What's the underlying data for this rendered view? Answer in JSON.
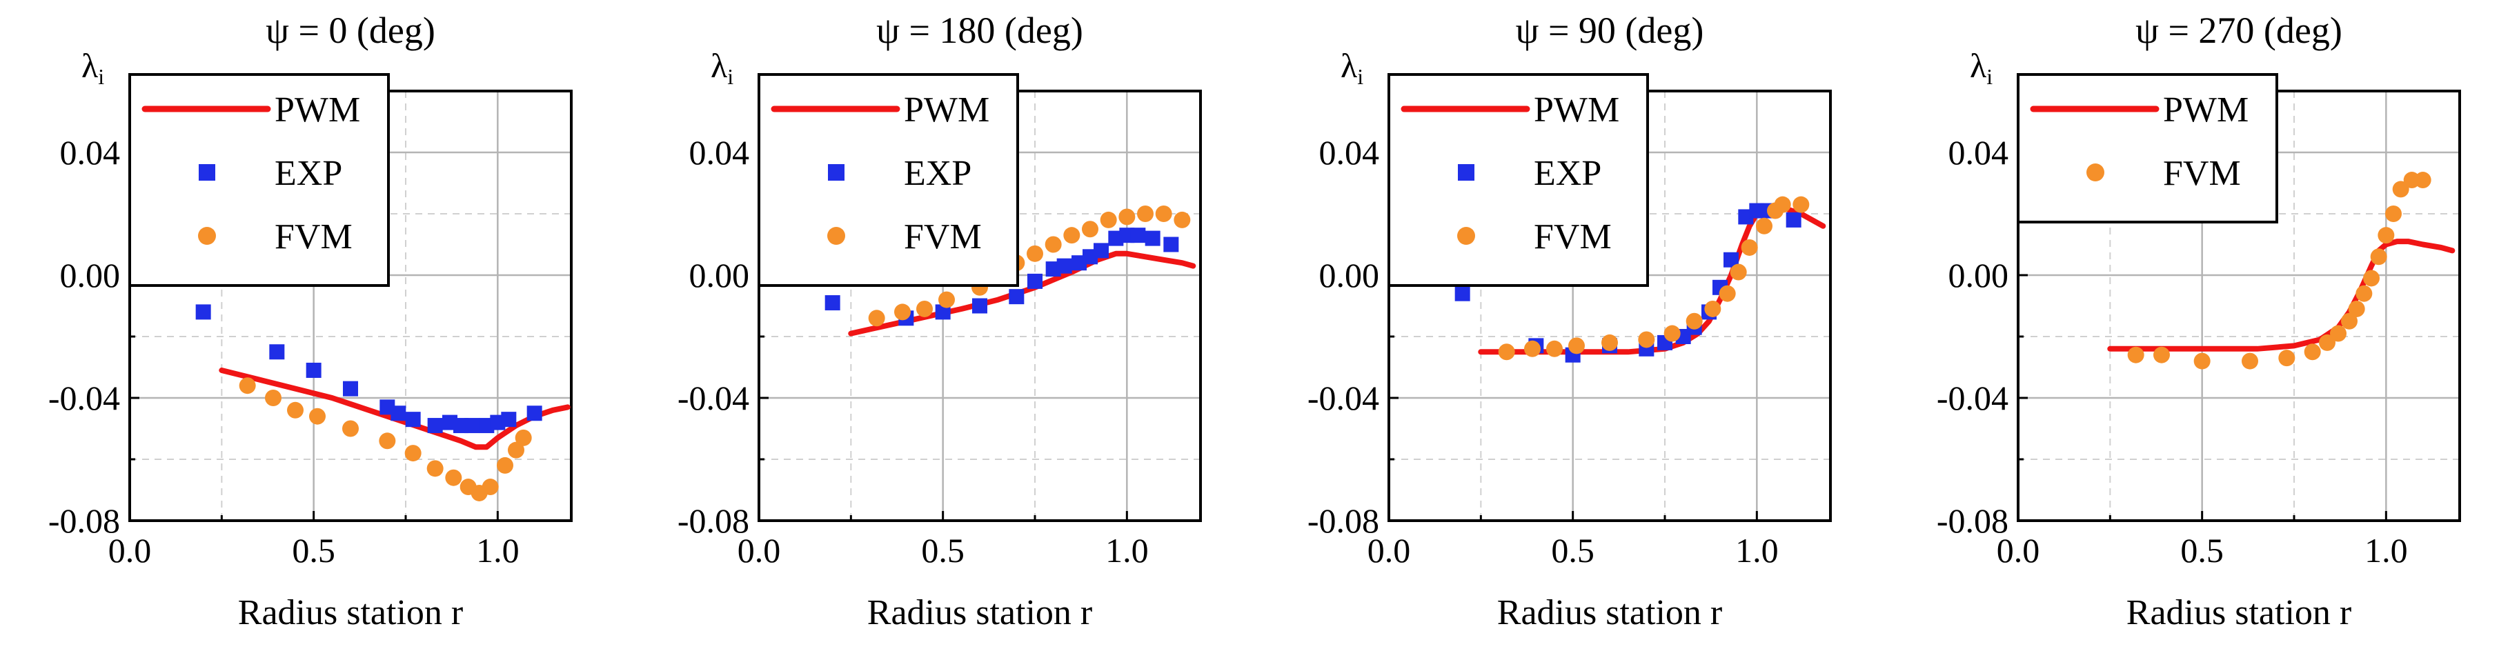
{
  "colors": {
    "pwm": "#f01515",
    "exp": "#1f2ee6",
    "fvm": "#f5902a",
    "grid": "#b4b4b4",
    "grid_minor": "#d0d0d0",
    "axis": "#000000"
  },
  "chart_data": [
    {
      "type": "line+scatter",
      "title": "ψ = 0 (deg)",
      "xlabel": "Radius station r",
      "ylabel": "λ",
      "ylabel_sub": "i",
      "xlim": [
        0.0,
        1.2
      ],
      "ylim": [
        -0.08,
        0.06
      ],
      "xticks": [
        {
          "v": 0.0,
          "label": "0.0"
        },
        {
          "v": 0.5,
          "label": "0.5"
        },
        {
          "v": 1.0,
          "label": "1.0"
        }
      ],
      "yticks": [
        {
          "v": -0.08,
          "label": "-0.08"
        },
        {
          "v": -0.04,
          "label": "-0.04"
        },
        {
          "v": 0.0,
          "label": "0.00"
        },
        {
          "v": 0.04,
          "label": "0.04"
        }
      ],
      "legend": [
        "PWM",
        "EXP",
        "FVM"
      ],
      "series": [
        {
          "name": "PWM",
          "kind": "line",
          "x": [
            0.25,
            0.35,
            0.45,
            0.55,
            0.65,
            0.75,
            0.85,
            0.9,
            0.94,
            0.97,
            1.0,
            1.05,
            1.1,
            1.15,
            1.19
          ],
          "y": [
            -0.031,
            -0.034,
            -0.037,
            -0.04,
            -0.044,
            -0.048,
            -0.052,
            -0.054,
            -0.056,
            -0.056,
            -0.053,
            -0.049,
            -0.046,
            -0.044,
            -0.043
          ]
        },
        {
          "name": "EXP",
          "kind": "square",
          "x": [
            0.2,
            0.4,
            0.5,
            0.6,
            0.7,
            0.73,
            0.77,
            0.83,
            0.87,
            0.9,
            0.93,
            0.97,
            1.0,
            1.03,
            1.1
          ],
          "y": [
            -0.012,
            -0.025,
            -0.031,
            -0.037,
            -0.043,
            -0.045,
            -0.047,
            -0.049,
            -0.048,
            -0.049,
            -0.049,
            -0.049,
            -0.048,
            -0.047,
            -0.045
          ]
        },
        {
          "name": "FVM",
          "kind": "circle",
          "x": [
            0.32,
            0.39,
            0.45,
            0.51,
            0.6,
            0.7,
            0.77,
            0.83,
            0.88,
            0.92,
            0.95,
            0.98,
            1.02,
            1.05,
            1.07
          ],
          "y": [
            -0.036,
            -0.04,
            -0.044,
            -0.046,
            -0.05,
            -0.054,
            -0.058,
            -0.063,
            -0.066,
            -0.069,
            -0.071,
            -0.069,
            -0.062,
            -0.057,
            -0.053
          ]
        }
      ]
    },
    {
      "type": "line+scatter",
      "title": "ψ = 180 (deg)",
      "xlabel": "Radius station r",
      "ylabel": "λ",
      "ylabel_sub": "i",
      "xlim": [
        0.0,
        1.2
      ],
      "ylim": [
        -0.08,
        0.06
      ],
      "xticks": [
        {
          "v": 0.0,
          "label": "0.0"
        },
        {
          "v": 0.5,
          "label": "0.5"
        },
        {
          "v": 1.0,
          "label": "1.0"
        }
      ],
      "yticks": [
        {
          "v": -0.08,
          "label": "-0.08"
        },
        {
          "v": -0.04,
          "label": "-0.04"
        },
        {
          "v": 0.0,
          "label": "0.00"
        },
        {
          "v": 0.04,
          "label": "0.04"
        }
      ],
      "legend": [
        "PWM",
        "EXP",
        "FVM"
      ],
      "series": [
        {
          "name": "PWM",
          "kind": "line",
          "x": [
            0.25,
            0.4,
            0.55,
            0.65,
            0.75,
            0.85,
            0.92,
            0.97,
            1.0,
            1.05,
            1.1,
            1.15,
            1.18
          ],
          "y": [
            -0.019,
            -0.015,
            -0.011,
            -0.008,
            -0.004,
            0.001,
            0.005,
            0.007,
            0.007,
            0.006,
            0.005,
            0.004,
            0.003
          ]
        },
        {
          "name": "EXP",
          "kind": "square",
          "x": [
            0.2,
            0.4,
            0.5,
            0.6,
            0.7,
            0.75,
            0.8,
            0.83,
            0.87,
            0.9,
            0.93,
            0.97,
            1.0,
            1.03,
            1.07,
            1.12
          ],
          "y": [
            -0.009,
            -0.014,
            -0.012,
            -0.01,
            -0.007,
            -0.002,
            0.002,
            0.003,
            0.004,
            0.006,
            0.008,
            0.012,
            0.013,
            0.013,
            0.012,
            0.01
          ]
        },
        {
          "name": "FVM",
          "kind": "circle",
          "x": [
            0.32,
            0.39,
            0.45,
            0.51,
            0.6,
            0.65,
            0.7,
            0.75,
            0.8,
            0.85,
            0.9,
            0.95,
            1.0,
            1.05,
            1.1,
            1.15
          ],
          "y": [
            -0.014,
            -0.012,
            -0.011,
            -0.008,
            -0.004,
            0.001,
            0.004,
            0.007,
            0.01,
            0.013,
            0.015,
            0.018,
            0.019,
            0.02,
            0.02,
            0.018
          ]
        }
      ]
    },
    {
      "type": "line+scatter",
      "title": "ψ = 90 (deg)",
      "xlabel": "Radius station r",
      "ylabel": "λ",
      "ylabel_sub": "i",
      "xlim": [
        0.0,
        1.2
      ],
      "ylim": [
        -0.08,
        0.06
      ],
      "xticks": [
        {
          "v": 0.0,
          "label": "0.0"
        },
        {
          "v": 0.5,
          "label": "0.5"
        },
        {
          "v": 1.0,
          "label": "1.0"
        }
      ],
      "yticks": [
        {
          "v": -0.08,
          "label": "-0.08"
        },
        {
          "v": -0.04,
          "label": "-0.04"
        },
        {
          "v": 0.0,
          "label": "0.00"
        },
        {
          "v": 0.04,
          "label": "0.04"
        }
      ],
      "legend": [
        "PWM",
        "EXP",
        "FVM"
      ],
      "series": [
        {
          "name": "PWM",
          "kind": "line",
          "x": [
            0.25,
            0.4,
            0.55,
            0.65,
            0.75,
            0.8,
            0.84,
            0.87,
            0.9,
            0.93,
            0.96,
            0.98,
            1.0,
            1.03,
            1.07,
            1.12,
            1.18
          ],
          "y": [
            -0.025,
            -0.025,
            -0.025,
            -0.025,
            -0.024,
            -0.022,
            -0.019,
            -0.015,
            -0.008,
            0.0,
            0.01,
            0.016,
            0.02,
            0.022,
            0.022,
            0.02,
            0.016
          ]
        },
        {
          "name": "EXP",
          "kind": "square",
          "x": [
            0.2,
            0.4,
            0.5,
            0.6,
            0.7,
            0.75,
            0.8,
            0.83,
            0.87,
            0.9,
            0.93,
            0.97,
            1.0,
            1.03,
            1.1
          ],
          "y": [
            -0.006,
            -0.023,
            -0.026,
            -0.023,
            -0.024,
            -0.022,
            -0.02,
            -0.017,
            -0.012,
            -0.004,
            0.005,
            0.019,
            0.021,
            0.021,
            0.018
          ]
        },
        {
          "name": "FVM",
          "kind": "circle",
          "x": [
            0.32,
            0.39,
            0.45,
            0.51,
            0.6,
            0.7,
            0.77,
            0.83,
            0.88,
            0.92,
            0.95,
            0.98,
            1.02,
            1.05,
            1.07,
            1.12
          ],
          "y": [
            -0.025,
            -0.024,
            -0.024,
            -0.023,
            -0.022,
            -0.021,
            -0.019,
            -0.015,
            -0.011,
            -0.006,
            0.001,
            0.009,
            0.016,
            0.021,
            0.023,
            0.023
          ]
        }
      ]
    },
    {
      "type": "line+scatter",
      "title": "ψ = 270 (deg)",
      "xlabel": "Radius station r",
      "ylabel": "λ",
      "ylabel_sub": "i",
      "xlim": [
        0.0,
        1.2
      ],
      "ylim": [
        -0.08,
        0.06
      ],
      "xticks": [
        {
          "v": 0.0,
          "label": "0.0"
        },
        {
          "v": 0.5,
          "label": "0.5"
        },
        {
          "v": 1.0,
          "label": "1.0"
        }
      ],
      "yticks": [
        {
          "v": -0.08,
          "label": "-0.08"
        },
        {
          "v": -0.04,
          "label": "-0.04"
        },
        {
          "v": 0.0,
          "label": "0.00"
        },
        {
          "v": 0.04,
          "label": "0.04"
        }
      ],
      "legend": [
        "PWM",
        "FVM"
      ],
      "series": [
        {
          "name": "PWM",
          "kind": "line",
          "x": [
            0.25,
            0.45,
            0.65,
            0.75,
            0.82,
            0.87,
            0.9,
            0.93,
            0.96,
            0.98,
            1.0,
            1.03,
            1.06,
            1.1,
            1.15,
            1.18
          ],
          "y": [
            -0.024,
            -0.024,
            -0.024,
            -0.023,
            -0.021,
            -0.017,
            -0.012,
            -0.005,
            0.003,
            0.008,
            0.01,
            0.011,
            0.011,
            0.01,
            0.009,
            0.008
          ]
        },
        {
          "name": "FVM",
          "kind": "circle",
          "x": [
            0.32,
            0.39,
            0.5,
            0.63,
            0.73,
            0.8,
            0.84,
            0.87,
            0.9,
            0.92,
            0.94,
            0.96,
            0.98,
            1.0,
            1.02,
            1.04,
            1.07,
            1.1
          ],
          "y": [
            -0.026,
            -0.026,
            -0.028,
            -0.028,
            -0.027,
            -0.025,
            -0.022,
            -0.019,
            -0.015,
            -0.011,
            -0.006,
            -0.001,
            0.006,
            0.013,
            0.02,
            0.028,
            0.031,
            0.031
          ]
        }
      ]
    }
  ]
}
